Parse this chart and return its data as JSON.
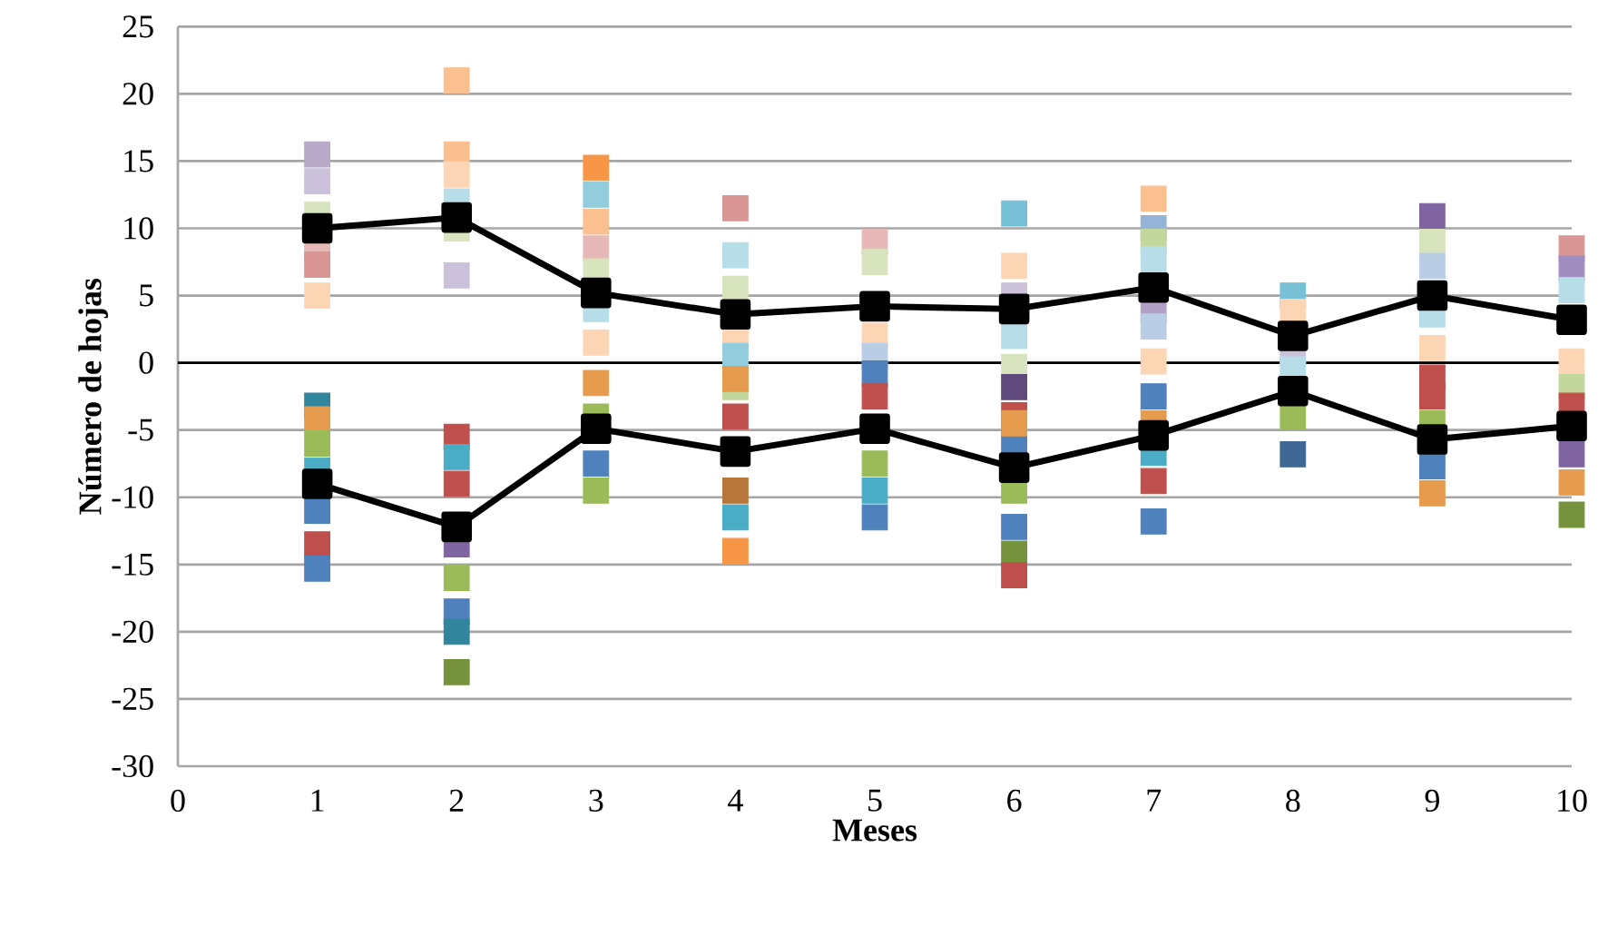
{
  "chart_data": {
    "type": "scatter",
    "xlabel": "Meses",
    "ylabel": "Número de hojas",
    "xlim": [
      0,
      10
    ],
    "ylim": [
      -30,
      25
    ],
    "xticks": [
      0,
      1,
      2,
      3,
      4,
      5,
      6,
      7,
      8,
      9,
      10
    ],
    "yticks": [
      -30,
      -25,
      -20,
      -15,
      -10,
      -5,
      0,
      5,
      10,
      15,
      20,
      25
    ],
    "grid": "y",
    "marker": "square",
    "ref_lines": [
      {
        "axis": "y",
        "value": 0,
        "color": "#000000"
      }
    ],
    "series": [
      {
        "x": [
          1,
          1,
          1,
          1,
          1,
          1,
          1,
          1,
          1,
          1,
          1,
          1,
          1,
          2,
          2,
          2,
          2,
          2,
          2,
          2,
          2,
          2,
          2,
          2,
          2,
          2,
          2,
          3,
          3,
          3,
          3,
          3,
          3,
          3,
          3,
          3,
          3,
          3,
          4,
          4,
          4,
          4,
          4,
          4,
          4,
          4,
          4,
          4,
          4,
          5,
          5,
          5,
          5,
          5,
          5,
          5,
          5,
          5,
          6,
          6,
          6,
          6,
          6,
          6,
          6,
          6,
          6,
          6,
          6,
          6,
          6,
          7,
          7,
          7,
          7,
          7,
          7,
          7,
          7,
          7,
          7,
          7,
          7,
          8,
          8,
          8,
          8,
          8,
          8,
          9,
          9,
          9,
          9,
          9,
          9,
          9,
          9,
          9,
          9,
          10,
          10,
          10,
          10,
          10,
          10,
          10,
          10,
          10
        ],
        "values": [
          15.5,
          13.5,
          11,
          8.5,
          7.3,
          5,
          -3.2,
          -4.2,
          -6,
          -8,
          -11,
          -13.5,
          -15.3,
          21,
          15.5,
          14,
          12,
          10,
          6.5,
          -5.5,
          -7,
          -9,
          -13.5,
          -16,
          -18.5,
          -20,
          -23,
          14.5,
          12.5,
          10.5,
          8.5,
          6.8,
          4,
          1.5,
          -1.5,
          -4,
          -7.5,
          -9.5,
          11.5,
          8,
          5.5,
          2,
          0.5,
          -1.8,
          -4,
          -9.5,
          -11.5,
          -14,
          -1.2,
          9,
          7.5,
          2,
          0.5,
          -0.8,
          -2.5,
          -7.5,
          -9.5,
          -11.5,
          11.1,
          7.2,
          2,
          -0.3,
          -1.8,
          -3.9,
          -5.9,
          -9.5,
          -12.2,
          -14.2,
          -15.8,
          5,
          -4.5,
          12.2,
          10,
          9,
          7.7,
          4,
          2.7,
          0.1,
          -2.5,
          -4.5,
          -6.7,
          -8.8,
          -11.8,
          5,
          3.8,
          0.9,
          -0.5,
          -4,
          -6.8,
          10.9,
          9,
          7.2,
          3.6,
          1.1,
          -1.1,
          -2.5,
          -4.5,
          -7.7,
          -9.7,
          8.5,
          7,
          5.4,
          0.1,
          -1.8,
          -3.2,
          -6.8,
          -8.9,
          -11.3
        ],
        "colors": [
          "#b8a9c9",
          "#ccc1da",
          "#d7e4bd",
          "#e6b9b8",
          "#d99694",
          "#fcd5b5",
          "#31859c",
          "#e59c4f",
          "#9bbb59",
          "#4bacc6",
          "#4f81bd",
          "#c0504d",
          "#4f81bd",
          "#fac090",
          "#fabf8f",
          "#fcd5b5",
          "#b7dee8",
          "#d7e4bd",
          "#ccc1da",
          "#c0504d",
          "#4bacc6",
          "#c0504d",
          "#8064a2",
          "#9bbb59",
          "#4f81bd",
          "#31859c",
          "#76923c",
          "#f79646",
          "#93cddd",
          "#fac090",
          "#e6b9b8",
          "#d7e4bd",
          "#b7dee8",
          "#fcd5b5",
          "#e59c4f",
          "#9bbb59",
          "#4f81bd",
          "#9bbb59",
          "#d99694",
          "#b7dee8",
          "#d7e4bd",
          "#fcd5b5",
          "#93cddd",
          "#c3d69b",
          "#c0504d",
          "#b7763a",
          "#4bacc6",
          "#f79646",
          "#e59c4f",
          "#e6b9b8",
          "#d7e4bd",
          "#fcd5b5",
          "#b9cde5",
          "#4f81bd",
          "#c0504d",
          "#9bbb59",
          "#4bacc6",
          "#4f81bd",
          "#77c0d6",
          "#fcd5b5",
          "#b7dee8",
          "#d7e4bd",
          "#604a7b",
          "#c0504d",
          "#4f81bd",
          "#9bbb59",
          "#4f81bd",
          "#76923c",
          "#c0504d",
          "#ccc1da",
          "#e59c4f",
          "#fac090",
          "#95b3d7",
          "#c3d69b",
          "#b7dee8",
          "#b2a1c7",
          "#b9cde5",
          "#fcd5b5",
          "#4f81bd",
          "#e59c4f",
          "#4bacc6",
          "#c0504d",
          "#4f81bd",
          "#77c0d6",
          "#fcd5b5",
          "#ccc1da",
          "#b7dee8",
          "#9bbb59",
          "#3f6895",
          "#8064a2",
          "#d7e4bd",
          "#b9cde5",
          "#b7dee8",
          "#fcd5b5",
          "#c0504d",
          "#c0504d",
          "#9bbb59",
          "#4f81bd",
          "#e59c4f",
          "#d99694",
          "#9f8ebf",
          "#b7dee8",
          "#fcd5b5",
          "#c3d69b",
          "#c0504d",
          "#8064a2",
          "#e59c4f",
          "#76923c"
        ]
      },
      {
        "type": "line",
        "color": "#000000",
        "line_style": "solid",
        "x": [
          1,
          2,
          3,
          4,
          5,
          6,
          7,
          8,
          9,
          10
        ],
        "values": [
          10,
          10.8,
          5.2,
          3.6,
          4.2,
          4,
          5.6,
          2,
          5,
          3.2
        ]
      },
      {
        "type": "line",
        "color": "#000000",
        "line_style": "solid",
        "x": [
          1,
          2,
          3,
          4,
          5,
          6,
          7,
          8,
          9,
          10
        ],
        "values": [
          -9,
          -12.2,
          -4.9,
          -6.6,
          -4.9,
          -7.8,
          -5.4,
          -2.1,
          -5.7,
          -4.7
        ]
      }
    ]
  }
}
